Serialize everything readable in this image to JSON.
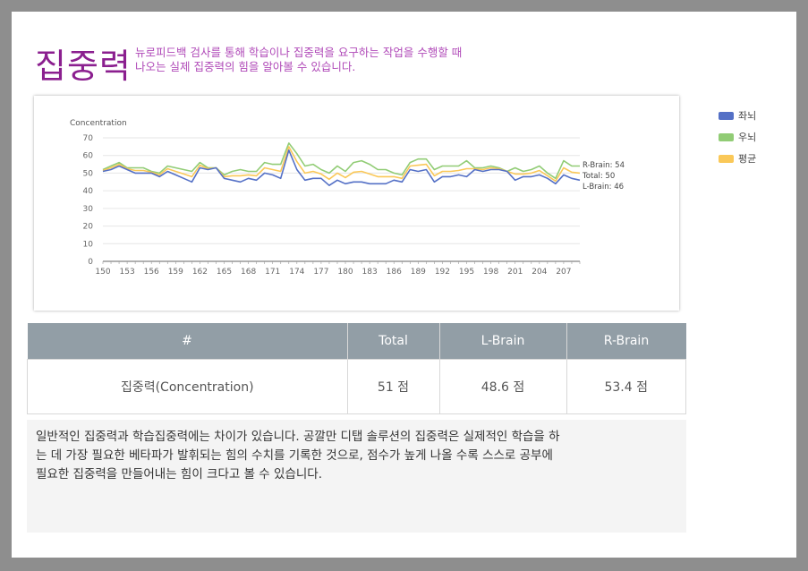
{
  "header": {
    "title": "집중력",
    "description_line1": "뉴로피드백 검사를 통해 학습이나 집중력을 요구하는 작업을 수행할 때",
    "description_line2": "나오는 실제 집중력의 힘을 알아볼 수 있습니다."
  },
  "legend": [
    {
      "label": "좌뇌",
      "color": "#5470c6"
    },
    {
      "label": "우뇌",
      "color": "#91cc75"
    },
    {
      "label": "평균",
      "color": "#fac858"
    }
  ],
  "chart_data": {
    "type": "line",
    "ylabel": "Concentration",
    "ylim": [
      0,
      70
    ],
    "yticks": [
      0,
      10,
      20,
      30,
      40,
      50,
      60,
      70
    ],
    "xlim": [
      150,
      209
    ],
    "xticks": [
      150,
      153,
      156,
      159,
      162,
      165,
      168,
      171,
      174,
      177,
      180,
      183,
      186,
      189,
      192,
      195,
      198,
      201,
      204,
      207
    ],
    "x": [
      150,
      151,
      152,
      153,
      154,
      155,
      156,
      157,
      158,
      159,
      160,
      161,
      162,
      163,
      164,
      165,
      166,
      167,
      168,
      169,
      170,
      171,
      172,
      173,
      174,
      175,
      176,
      177,
      178,
      179,
      180,
      181,
      182,
      183,
      184,
      185,
      186,
      187,
      188,
      189,
      190,
      191,
      192,
      193,
      194,
      195,
      196,
      197,
      198,
      199,
      200,
      201,
      202,
      203,
      204,
      205,
      206,
      207,
      208,
      209
    ],
    "series": [
      {
        "name": "좌뇌",
        "color": "#5470c6",
        "values": [
          51,
          52,
          54,
          52,
          50,
          50,
          50,
          48,
          51,
          49,
          47,
          45,
          53,
          52,
          53,
          47,
          46,
          45,
          47,
          46,
          50,
          49,
          47,
          63,
          52,
          46,
          47,
          47,
          43,
          46,
          44,
          45,
          45,
          44,
          44,
          44,
          46,
          45,
          52,
          51,
          52,
          45,
          48,
          48,
          49,
          48,
          52,
          51,
          52,
          52,
          51,
          46,
          48,
          48,
          49,
          47,
          44,
          49,
          47,
          46
        ]
      },
      {
        "name": "우뇌",
        "color": "#91cc75",
        "values": [
          52,
          54,
          56,
          53,
          53,
          53,
          51,
          50,
          54,
          53,
          52,
          51,
          56,
          53,
          53,
          49,
          51,
          52,
          51,
          51,
          56,
          55,
          55,
          67,
          61,
          54,
          55,
          52,
          50,
          54,
          51,
          56,
          57,
          55,
          52,
          52,
          50,
          49,
          56,
          58,
          58,
          52,
          54,
          54,
          54,
          57,
          53,
          53,
          54,
          53,
          51,
          53,
          51,
          52,
          54,
          50,
          47,
          57,
          54,
          54
        ]
      },
      {
        "name": "평균",
        "color": "#fac858",
        "values": [
          51.5,
          53,
          55,
          52.5,
          51.5,
          51.5,
          50.5,
          49,
          52.5,
          51,
          49.5,
          48,
          54.5,
          52.5,
          53,
          48,
          48.5,
          48.5,
          49,
          48.5,
          53,
          52,
          51,
          65,
          56.5,
          50,
          51,
          49.5,
          46.5,
          50,
          47.5,
          50.5,
          51,
          49.5,
          48,
          48,
          48,
          47,
          54,
          54.5,
          55,
          48.5,
          51,
          51,
          51.5,
          52.5,
          52.5,
          52,
          53,
          52.5,
          51,
          49.5,
          49.5,
          50,
          51.5,
          48.5,
          45.5,
          53,
          50.5,
          50
        ]
      }
    ],
    "end_labels": [
      "R-Brain: 54",
      "Total: 50",
      "L-Brain: 46"
    ]
  },
  "table": {
    "headers": [
      "#",
      "Total",
      "L-Brain",
      "R-Brain"
    ],
    "row": [
      "집중력(Concentration)",
      "51 점",
      "48.6 점",
      "53.4 점"
    ]
  },
  "note": "일반적인 집중력과 학습집중력에는 차이가 있습니다. 공깔만 디탭 솔루션의 집중력은 실제적인 학습을 하는 데 가장 필요한 베타파가 발휘되는 힘의 수치를 기록한 것으로, 점수가 높게 나올 수록 스스로 공부에 필요한 집중력을 만들어내는 힘이 크다고 볼 수 있습니다."
}
